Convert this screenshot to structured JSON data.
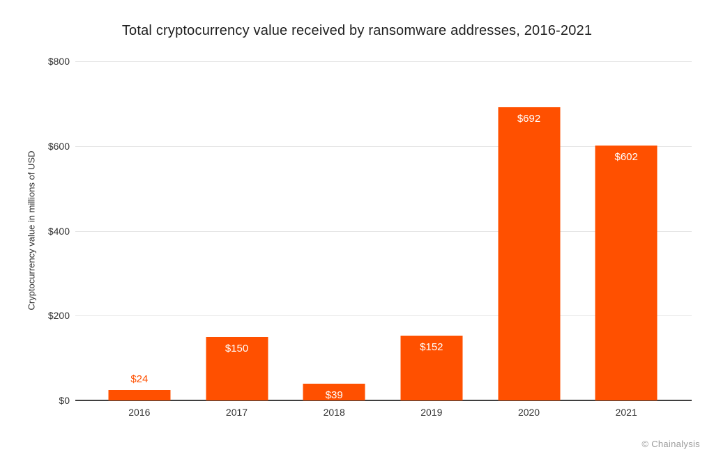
{
  "title": "Total cryptocurrency value received by ransomware addresses, 2016-2021",
  "credit": "© Chainalysis",
  "colors": {
    "bar": "#FF5000",
    "bar_label_inside": "#FFFFFF",
    "bar_label_above": "#FF5000",
    "gridline": "#E4E4E4",
    "axis_line": "#3F3F3F",
    "title_text": "#1F1F1F",
    "tick_text": "#2F2F2F",
    "credit_text": "#9B9B9B"
  },
  "chart_data": {
    "type": "bar",
    "title": "Total cryptocurrency value received by ransomware addresses, 2016-2021",
    "xlabel": "",
    "ylabel": "Cryptocurrency value in millions of USD",
    "categories": [
      "2016",
      "2017",
      "2018",
      "2019",
      "2020",
      "2021"
    ],
    "values": [
      24,
      150,
      39,
      152,
      692,
      602
    ],
    "bar_labels": [
      "$24",
      "$150",
      "$39",
      "$152",
      "$692",
      "$602"
    ],
    "bar_label_positions": [
      "above",
      "inside",
      "inside",
      "inside",
      "inside",
      "inside"
    ],
    "ylim": [
      0,
      800
    ],
    "yticks": [
      0,
      200,
      400,
      600,
      800
    ],
    "ytick_labels": [
      "$0",
      "$200",
      "$400",
      "$600",
      "$800"
    ],
    "grid": "horizontal",
    "legend": "none"
  }
}
